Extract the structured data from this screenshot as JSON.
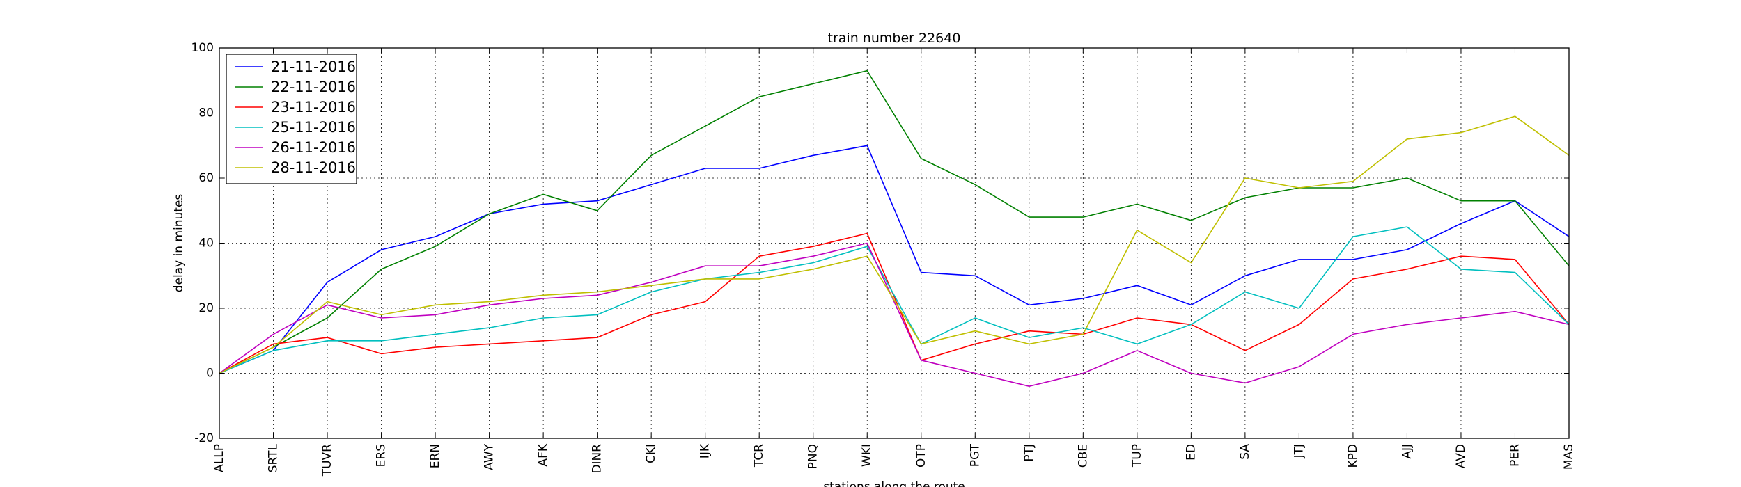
{
  "chart_data": {
    "type": "line",
    "title": "train number 22640",
    "xlabel": "stations along the route",
    "ylabel": "delay in minutes",
    "ylim": [
      -20,
      100
    ],
    "yticks": [
      -20,
      0,
      20,
      40,
      60,
      80,
      100
    ],
    "grid": true,
    "legend_position": "top-left",
    "categories": [
      "ALLP",
      "SRTL",
      "TUVR",
      "ERS",
      "ERN",
      "AWY",
      "AFK",
      "DINR",
      "CKI",
      "IJK",
      "TCR",
      "PNQ",
      "WKI",
      "OTP",
      "PGT",
      "PTJ",
      "CBE",
      "TUP",
      "ED",
      "SA",
      "JTJ",
      "KPD",
      "AJJ",
      "AVD",
      "PER",
      "MAS"
    ],
    "series": [
      {
        "name": "21-11-2016",
        "color": "#0000ff",
        "values": [
          0,
          7,
          28,
          38,
          42,
          49,
          52,
          53,
          58,
          63,
          63,
          67,
          70,
          31,
          30,
          21,
          23,
          27,
          21,
          30,
          35,
          35,
          38,
          46,
          53,
          42
        ]
      },
      {
        "name": "22-11-2016",
        "color": "#008000",
        "values": [
          0,
          8,
          17,
          32,
          39,
          49,
          55,
          50,
          67,
          76,
          85,
          89,
          93,
          66,
          58,
          48,
          48,
          52,
          47,
          54,
          57,
          57,
          60,
          53,
          53,
          33
        ]
      },
      {
        "name": "23-11-2016",
        "color": "#ff0000",
        "values": [
          0,
          9,
          11,
          6,
          8,
          9,
          10,
          11,
          18,
          22,
          36,
          39,
          43,
          4,
          9,
          13,
          12,
          17,
          15,
          7,
          15,
          29,
          32,
          36,
          35,
          15
        ]
      },
      {
        "name": "25-11-2016",
        "color": "#00bfbf",
        "values": [
          0,
          7,
          10,
          10,
          12,
          14,
          17,
          18,
          25,
          29,
          31,
          34,
          39,
          9,
          17,
          11,
          14,
          9,
          15,
          25,
          20,
          42,
          45,
          32,
          31,
          15
        ]
      },
      {
        "name": "26-11-2016",
        "color": "#bf00bf",
        "values": [
          0,
          12,
          21,
          17,
          18,
          21,
          23,
          24,
          28,
          33,
          33,
          36,
          40,
          4,
          0,
          -4,
          0,
          7,
          0,
          -3,
          2,
          12,
          15,
          17,
          19,
          15
        ]
      },
      {
        "name": "28-11-2016",
        "color": "#bfbf00",
        "values": [
          0,
          8,
          22,
          18,
          21,
          22,
          24,
          25,
          27,
          29,
          29,
          32,
          36,
          9,
          13,
          9,
          12,
          44,
          34,
          60,
          57,
          59,
          72,
          74,
          79,
          67
        ]
      }
    ]
  }
}
